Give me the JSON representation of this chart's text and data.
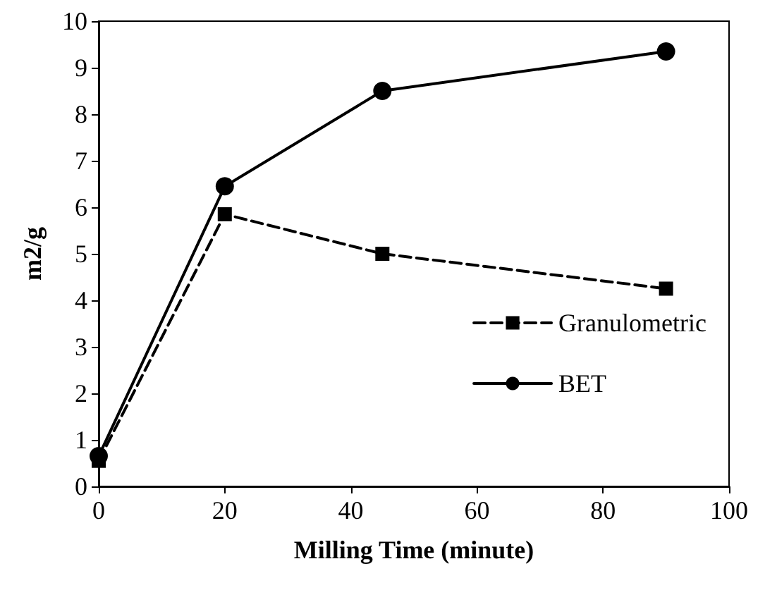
{
  "chart_data": {
    "type": "line",
    "xlabel": "Milling Time (minute)",
    "ylabel": "m2/g",
    "x": [
      0,
      20,
      45,
      90
    ],
    "series": [
      {
        "name": "Granulometric",
        "color": "#000000",
        "values": [
          0.55,
          5.85,
          5.0,
          4.25
        ],
        "marker": "square",
        "line_style": "dashed"
      },
      {
        "name": "BET",
        "color": "#000000",
        "values": [
          0.65,
          6.45,
          8.5,
          9.35
        ],
        "marker": "circle",
        "line_style": "solid"
      }
    ],
    "xlim": [
      0,
      100
    ],
    "xticks": [
      0,
      20,
      40,
      60,
      80,
      100
    ],
    "ylim": [
      0,
      10
    ],
    "yticks": [
      0,
      1,
      2,
      3,
      4,
      5,
      6,
      7,
      8,
      9,
      10
    ],
    "grid": false,
    "legend": "right"
  }
}
